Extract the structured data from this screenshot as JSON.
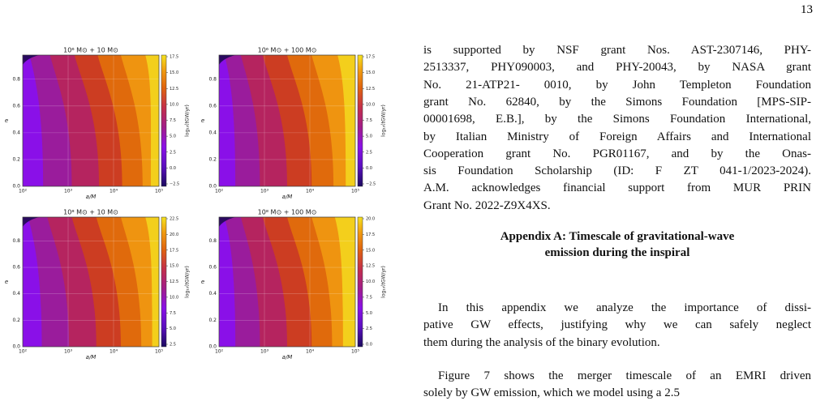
{
  "page_number": "13",
  "figure": {
    "panels": [
      {
        "title": "10⁶ M⊙ + 10 M⊙",
        "xlabel": "a/M",
        "ylabel": "e",
        "xticks": [
          "10²",
          "10³",
          "10⁴",
          "10⁵"
        ],
        "yticks": [
          "0.0",
          "0.2",
          "0.4",
          "0.6",
          "0.8"
        ],
        "colorbar_label": "log₁₀(tGW/yr)",
        "colorbar_ticks": [
          "17.5",
          "15.0",
          "12.5",
          "10.0",
          "7.5",
          "5.0",
          "2.5",
          "0.0",
          "−2.5"
        ]
      },
      {
        "title": "10⁶ M⊙ + 100 M⊙",
        "xlabel": "a/M",
        "ylabel": "e",
        "xticks": [
          "10²",
          "10³",
          "10⁴",
          "10⁵"
        ],
        "yticks": [
          "0.0",
          "0.2",
          "0.4",
          "0.6",
          "0.8"
        ],
        "colorbar_label": "log₁₀(tGW/yr)",
        "colorbar_ticks": [
          "17.5",
          "15.0",
          "12.5",
          "10.0",
          "7.5",
          "5.0",
          "2.5",
          "0.0",
          "−2.5"
        ]
      },
      {
        "title": "10⁸ M⊙ + 10 M⊙",
        "xlabel": "a/M",
        "ylabel": "e",
        "xticks": [
          "10²",
          "10³",
          "10⁴",
          "10⁵"
        ],
        "yticks": [
          "0.0",
          "0.2",
          "0.4",
          "0.6",
          "0.8"
        ],
        "colorbar_label": "log₁₀(tGW/yr)",
        "colorbar_ticks": [
          "22.5",
          "20.0",
          "17.5",
          "15.0",
          "12.5",
          "10.0",
          "7.5",
          "5.0",
          "2.5"
        ]
      },
      {
        "title": "10⁸ M⊙ + 100 M⊙",
        "xlabel": "a/M",
        "ylabel": "e",
        "xticks": [
          "10²",
          "10³",
          "10⁴",
          "10⁵"
        ],
        "yticks": [
          "0.0",
          "0.2",
          "0.4",
          "0.6",
          "0.8"
        ],
        "colorbar_label": "log₁₀(tGW/yr)",
        "colorbar_ticks": [
          "20.0",
          "17.5",
          "15.0",
          "12.5",
          "10.0",
          "7.5",
          "5.0",
          "2.5",
          "0.0"
        ]
      }
    ]
  },
  "text": {
    "paragraph_1": [
      "is supported by NSF grant Nos. AST-2307146, PHY-",
      "2513337, PHY090003, and PHY-20043, by NASA grant",
      "No. 21-ATP21- 0010, by John Templeton Foundation",
      "grant No. 62840, by the Simons Foundation [MPS-SIP-",
      "00001698, E.B.], by the Simons Foundation International,",
      "by Italian Ministry of Foreign Affairs and International",
      "Cooperation grant No. PGR01167, and by the Onas-",
      "sis Foundation Scholarship (ID: F ZT 041-1/2023-2024).",
      "A.M. acknowledges financial support from MUR PRIN",
      "Grant No. 2022-Z9X4XS."
    ],
    "appendix_heading": [
      "Appendix A: Timescale of gravitational-wave",
      "emission during the inspiral"
    ],
    "paragraph_2": [
      "In this appendix we analyze the importance of dissi-",
      "pative GW effects, justifying why we can safely neglect",
      "them during the analysis of the binary evolution."
    ],
    "paragraph_3": [
      "Figure 7 shows the merger timescale of an EMRI driven",
      "solely by GW emission, which we model using a 2.5"
    ]
  }
}
